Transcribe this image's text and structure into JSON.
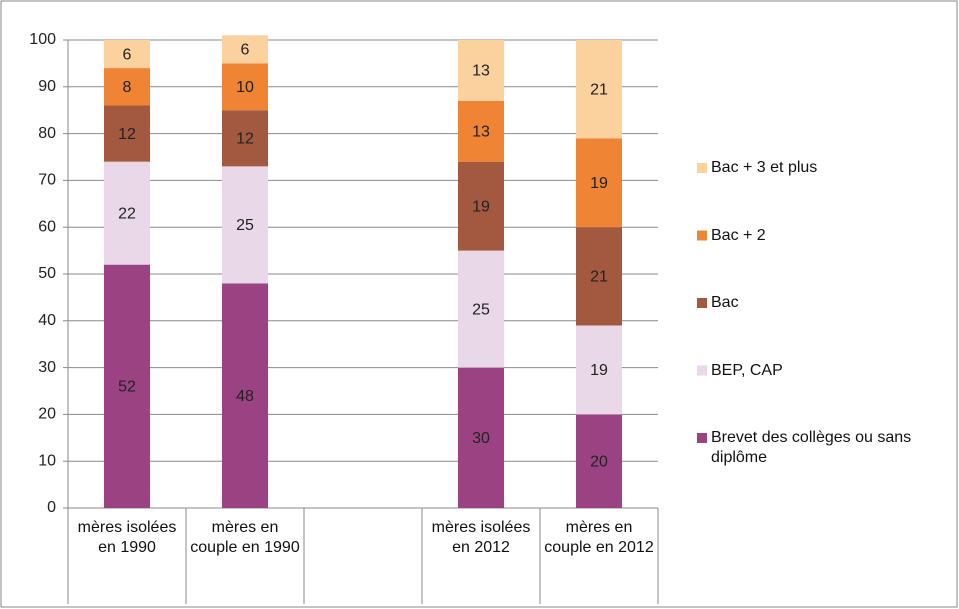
{
  "chart_data": {
    "type": "stacked_bar",
    "categories": [
      "mères isolées en 1990",
      "mères en couple en 1990",
      null,
      "mères isolées en 2012",
      "mères en couple en 2012"
    ],
    "series": [
      {
        "name": "Brevet des collèges ou sans diplôme",
        "color": "#9b4382",
        "values": [
          52,
          48,
          null,
          30,
          20
        ]
      },
      {
        "name": "BEP, CAP",
        "color": "#e8d8e8",
        "values": [
          22,
          25,
          null,
          25,
          19
        ]
      },
      {
        "name": "Bac",
        "color": "#a3593f",
        "values": [
          12,
          12,
          null,
          19,
          21
        ]
      },
      {
        "name": "Bac + 2",
        "color": "#ef8434",
        "values": [
          8,
          10,
          null,
          13,
          19
        ]
      },
      {
        "name": "Bac + 3 et plus",
        "color": "#fbd29e",
        "values": [
          6,
          6,
          null,
          13,
          21
        ]
      }
    ],
    "ylim": [
      0,
      100
    ],
    "yticks": [
      0,
      10,
      20,
      30,
      40,
      50,
      60,
      70,
      80,
      90,
      100
    ],
    "grid": true,
    "legend": "right"
  }
}
